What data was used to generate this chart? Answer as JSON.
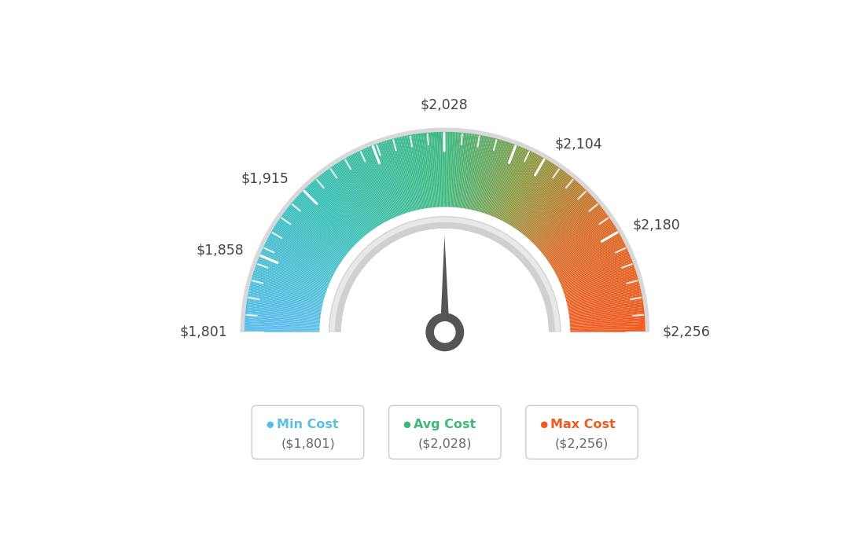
{
  "min_val": 1801,
  "avg_val": 2028,
  "max_val": 2256,
  "shown_tick_values": [
    1801,
    1858,
    1915,
    2028,
    2104,
    2180,
    2256
  ],
  "all_tick_values": [
    1801,
    1858,
    1915,
    1975,
    2028,
    2081,
    2104,
    2180,
    2256
  ],
  "tick_label_map": {
    "1801": "$1,801",
    "1858": "$1,858",
    "1915": "$1,915",
    "2028": "$2,028",
    "2104": "$2,104",
    "2180": "$2,180",
    "2256": "$2,256"
  },
  "legend": [
    {
      "label": "Min Cost",
      "value": "($1,801)",
      "color": "#5bbde4"
    },
    {
      "label": "Avg Cost",
      "value": "($2,028)",
      "color": "#3cb87a"
    },
    {
      "label": "Max Cost",
      "value": "($2,256)",
      "color": "#f05a1e"
    }
  ],
  "background_color": "#ffffff",
  "color_stops": [
    [
      0.0,
      [
        0.36,
        0.74,
        0.93
      ]
    ],
    [
      0.25,
      [
        0.22,
        0.75,
        0.72
      ]
    ],
    [
      0.5,
      [
        0.24,
        0.72,
        0.5
      ]
    ],
    [
      0.65,
      [
        0.55,
        0.6,
        0.25
      ]
    ],
    [
      0.8,
      [
        0.85,
        0.42,
        0.15
      ]
    ],
    [
      1.0,
      [
        0.94,
        0.35,
        0.12
      ]
    ]
  ]
}
